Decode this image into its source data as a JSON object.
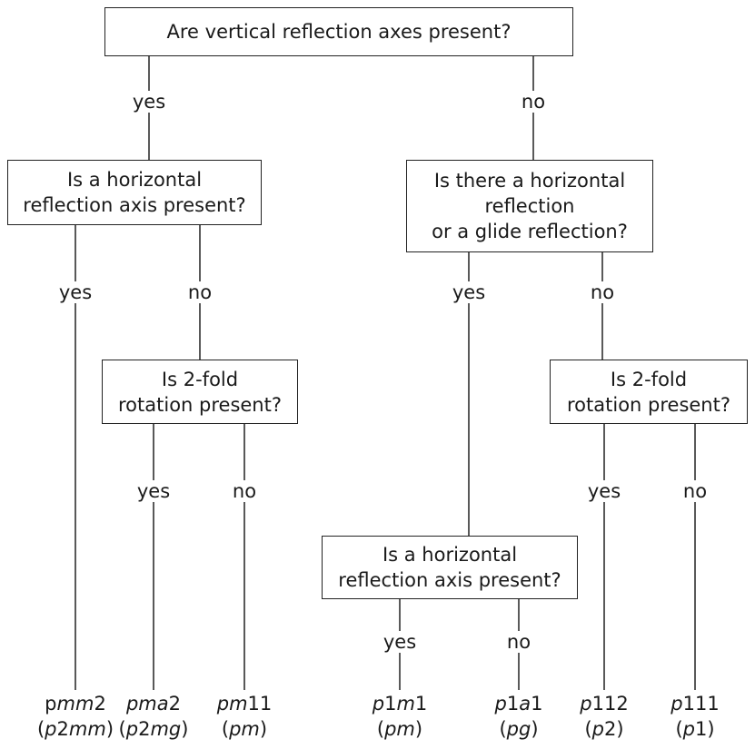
{
  "questions": {
    "q_vertical": [
      "Are vertical reflection axes present?"
    ],
    "q_horiz_left": [
      "Is a horizontal",
      "reflection axis present?"
    ],
    "q_horiz_or_glide": [
      "Is there a horizontal",
      "reflection",
      "or a glide reflection?"
    ],
    "q_2fold_left": [
      "Is 2-fold",
      "rotation present?"
    ],
    "q_2fold_right": [
      "Is 2-fold",
      "rotation present?"
    ],
    "q_horiz_bottom": [
      "Is a horizontal",
      "reflection axis present?"
    ]
  },
  "edge_labels": {
    "top_yes": "yes",
    "top_no": "no",
    "left_yes": "yes",
    "left_no": "no",
    "right_yes": "yes",
    "right_no": "no",
    "left2fold_yes": "yes",
    "left2fold_no": "no",
    "right2fold_yes": "yes",
    "right2fold_no": "no",
    "bottom_yes": "yes",
    "bottom_no": "no"
  },
  "results": [
    {
      "symbol": [
        [
          "",
          "p"
        ],
        [
          "i",
          "mm"
        ],
        [
          "",
          "2"
        ]
      ],
      "alt": [
        [
          "",
          "("
        ],
        [
          "i",
          "p"
        ],
        [
          "",
          "2"
        ],
        [
          "i",
          "mm"
        ],
        [
          "",
          ")"
        ]
      ]
    },
    {
      "symbol": [
        [
          "i",
          "pma"
        ],
        [
          "",
          "2"
        ]
      ],
      "alt": [
        [
          "",
          "("
        ],
        [
          "i",
          "p"
        ],
        [
          "",
          "2"
        ],
        [
          "i",
          "mg"
        ],
        [
          "",
          ")"
        ]
      ]
    },
    {
      "symbol": [
        [
          "i",
          "pm"
        ],
        [
          "",
          "11"
        ]
      ],
      "alt": [
        [
          "",
          "("
        ],
        [
          "i",
          "pm"
        ],
        [
          "",
          ")"
        ]
      ]
    },
    {
      "symbol": [
        [
          "i",
          "p"
        ],
        [
          "",
          "1"
        ],
        [
          "i",
          "m"
        ],
        [
          "",
          "1"
        ]
      ],
      "alt": [
        [
          "",
          "("
        ],
        [
          "i",
          "pm"
        ],
        [
          "",
          ")"
        ]
      ]
    },
    {
      "symbol": [
        [
          "i",
          "p"
        ],
        [
          "",
          "1"
        ],
        [
          "i",
          "a"
        ],
        [
          "",
          "1"
        ]
      ],
      "alt": [
        [
          "",
          "("
        ],
        [
          "i",
          "pg"
        ],
        [
          "",
          ")"
        ]
      ]
    },
    {
      "symbol": [
        [
          "i",
          "p"
        ],
        [
          "",
          "112"
        ]
      ],
      "alt": [
        [
          "",
          "("
        ],
        [
          "i",
          "p"
        ],
        [
          "",
          "2)"
        ]
      ]
    },
    {
      "symbol": [
        [
          "i",
          "p"
        ],
        [
          "",
          "111"
        ]
      ],
      "alt": [
        [
          "",
          "("
        ],
        [
          "i",
          "p"
        ],
        [
          "",
          "1)"
        ]
      ]
    }
  ]
}
